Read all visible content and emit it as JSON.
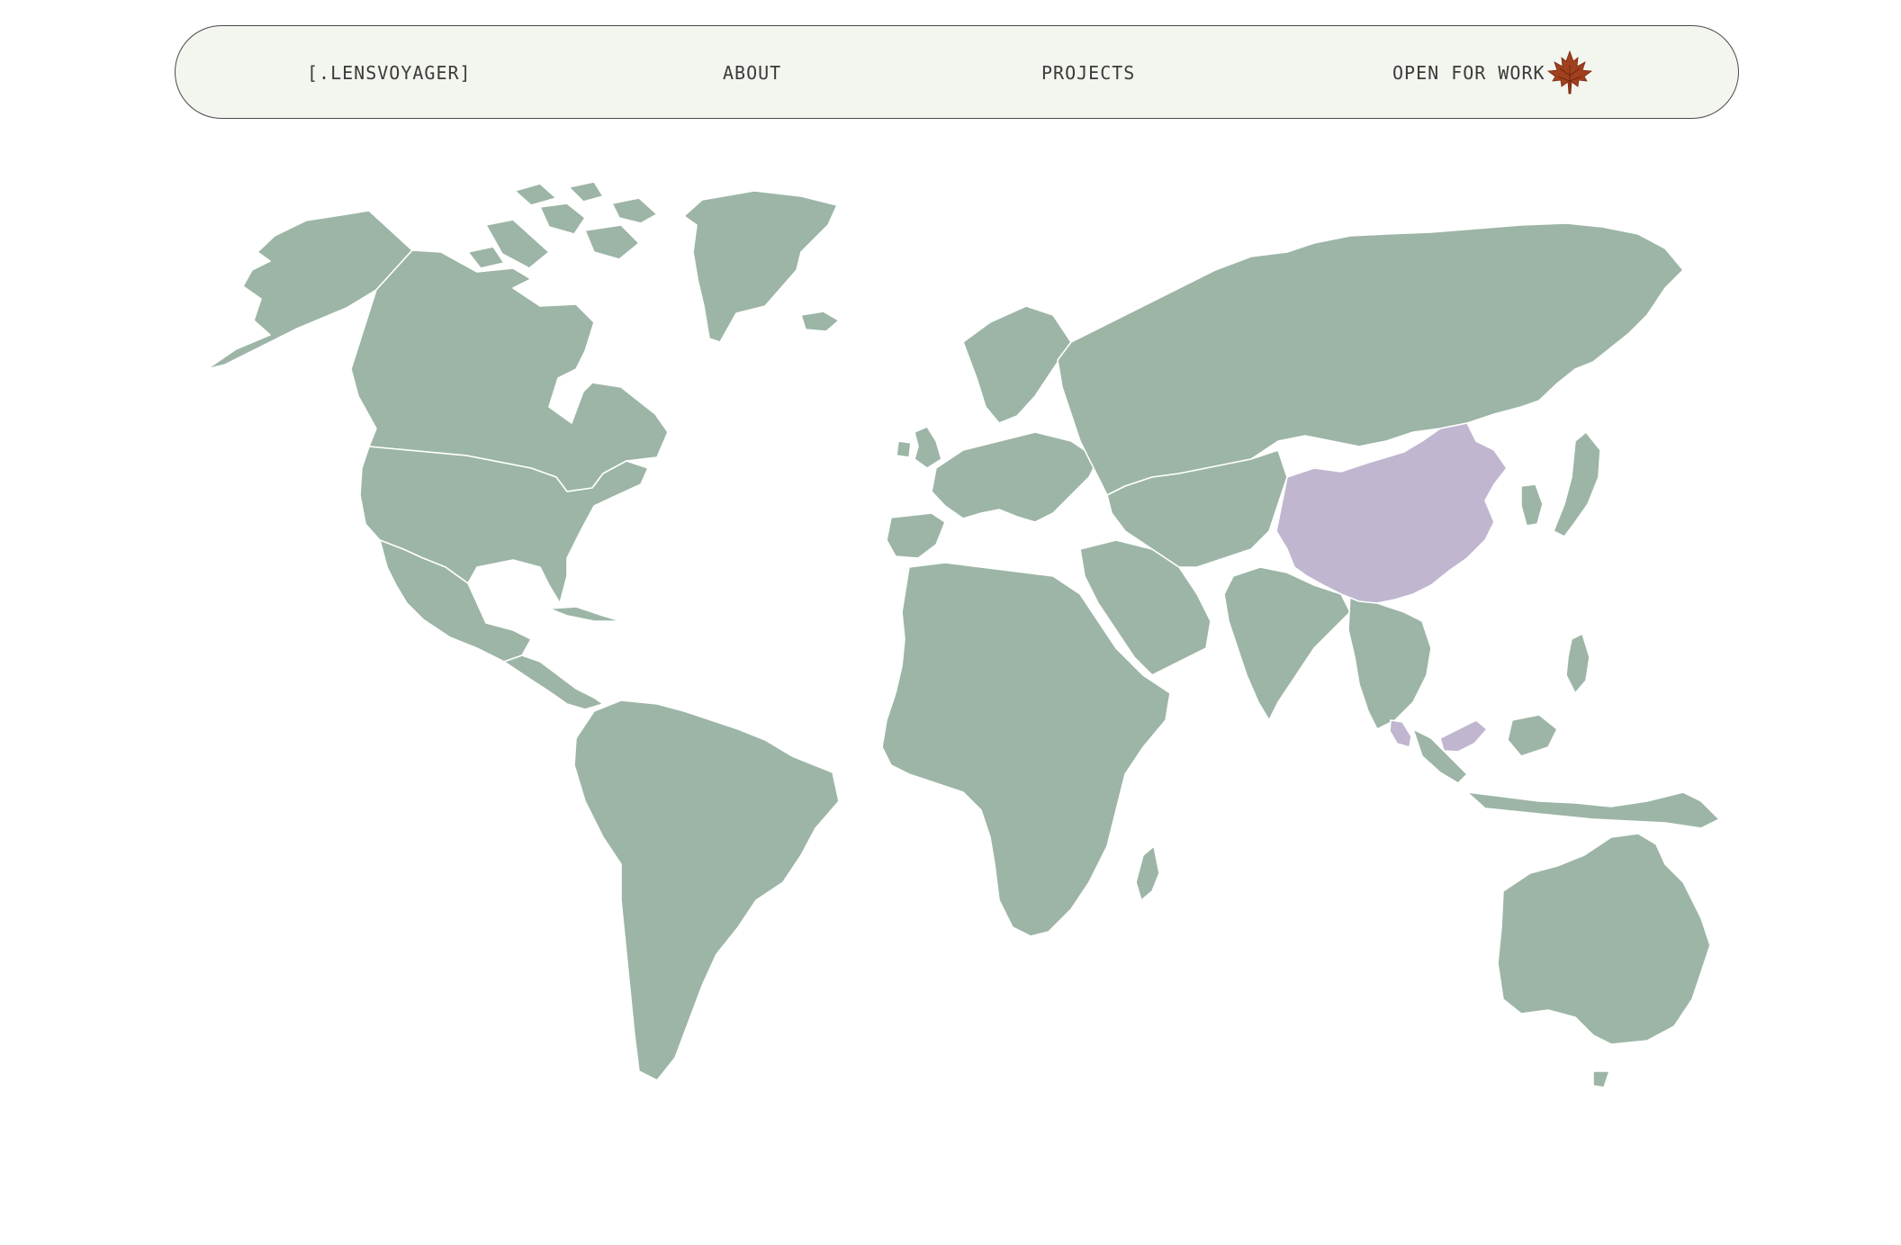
{
  "nav": {
    "brand": "[.LENSVOYAGER]",
    "about": "ABOUT",
    "projects": "PROJECTS",
    "work": "OPEN FOR WORK",
    "work_icon": "maple-leaf-icon"
  },
  "map": {
    "land_color": "#9cb5a6",
    "highlight_color": "#c0b6cf",
    "highlighted_countries": [
      "China",
      "Malaysia"
    ]
  },
  "theme": {
    "nav_background": "#f3f5ef",
    "nav_border": "#4a4a4a",
    "text_color": "#3b3b3b",
    "leaf_color": "#a0401e"
  }
}
